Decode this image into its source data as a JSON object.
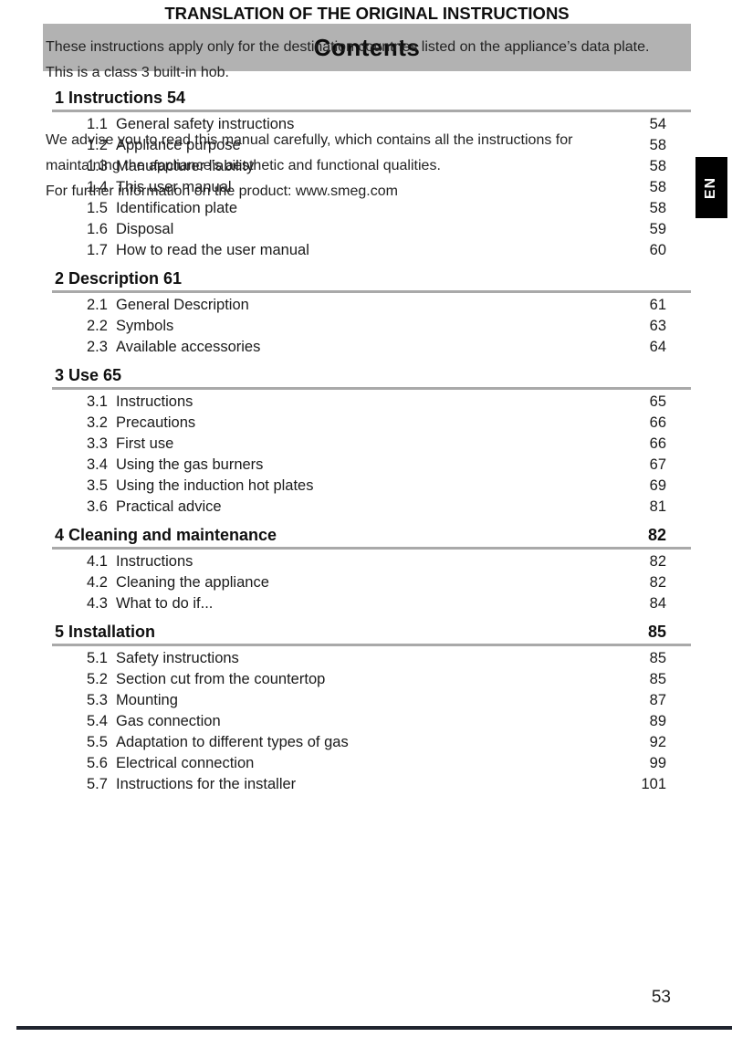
{
  "header": {
    "title": "Contents"
  },
  "language_tab": {
    "label": "EN"
  },
  "toc": {
    "sections": [
      {
        "number": "1",
        "title": "Instructions",
        "page": "54",
        "page_position": "inline",
        "items": [
          {
            "num": "1.1",
            "title": "General safety instructions",
            "page": "54"
          },
          {
            "num": "1.2",
            "title": "Appliance purpose",
            "page": "58"
          },
          {
            "num": "1.3",
            "title": "Manufacturer liability",
            "page": "58"
          },
          {
            "num": "1.4",
            "title": "This user manual",
            "page": "58"
          },
          {
            "num": "1.5",
            "title": "Identification plate",
            "page": "58"
          },
          {
            "num": "1.6",
            "title": "Disposal",
            "page": "59"
          },
          {
            "num": "1.7",
            "title": "How to read the user manual",
            "page": "60"
          }
        ]
      },
      {
        "number": "2",
        "title": "Description",
        "page": "61",
        "page_position": "inline",
        "items": [
          {
            "num": "2.1",
            "title": "General Description",
            "page": "61"
          },
          {
            "num": "2.2",
            "title": "Symbols",
            "page": "63"
          },
          {
            "num": "2.3",
            "title": "Available accessories",
            "page": "64"
          }
        ]
      },
      {
        "number": "3",
        "title": "Use",
        "page": "65",
        "page_position": "inline",
        "items": [
          {
            "num": "3.1",
            "title": "Instructions",
            "page": "65"
          },
          {
            "num": "3.2",
            "title": "Precautions",
            "page": "66"
          },
          {
            "num": "3.3",
            "title": "First use",
            "page": "66"
          },
          {
            "num": "3.4",
            "title": "Using the gas burners",
            "page": "67"
          },
          {
            "num": "3.5",
            "title": "Using the induction hot plates",
            "page": "69"
          },
          {
            "num": "3.6",
            "title": "Practical advice",
            "page": "81"
          }
        ]
      },
      {
        "number": "4",
        "title": "Cleaning and maintenance",
        "page": "82",
        "page_position": "right",
        "items": [
          {
            "num": "4.1",
            "title": "Instructions",
            "page": "82"
          },
          {
            "num": "4.2",
            "title": "Cleaning the appliance",
            "page": "82"
          },
          {
            "num": "4.3",
            "title": "What to do if...",
            "page": "84"
          }
        ]
      },
      {
        "number": "5",
        "title": "Installation",
        "page": "85",
        "page_position": "right",
        "items": [
          {
            "num": "5.1",
            "title": "Safety instructions",
            "page": "85"
          },
          {
            "num": "5.2",
            "title": "Section cut from the countertop",
            "page": "85"
          },
          {
            "num": "5.3",
            "title": "Mounting",
            "page": "87"
          },
          {
            "num": "5.4",
            "title": "Gas connection",
            "page": "89"
          },
          {
            "num": "5.5",
            "title": "Adaptation to different types of gas",
            "page": "92"
          },
          {
            "num": "5.6",
            "title": "Electrical connection",
            "page": "99"
          },
          {
            "num": "5.7",
            "title": "Instructions for the installer",
            "page": "101"
          }
        ]
      }
    ]
  },
  "footer": {
    "notice_heading": "TRANSLATION OF THE ORIGINAL INSTRUCTIONS",
    "paragraph1_lines": [
      "These instructions apply only for the destination countries listed on the appliance’s data plate.",
      "This is a class 3 built-in hob."
    ],
    "paragraph2_lines": [
      "We advise you to read this manual carefully, which contains all the instructions for",
      "maintaining the appliance’s aesthetic and functional qualities."
    ],
    "info_prefix": "For further information on the product: ",
    "website": "www.smeg.com",
    "page_number": "53"
  },
  "colors": {
    "header_bar": "#b2b2b2",
    "section_rule": "#a9a9a9",
    "tab_background": "#000000",
    "tab_text": "#ffffff",
    "bottom_bar": "#20242e"
  }
}
